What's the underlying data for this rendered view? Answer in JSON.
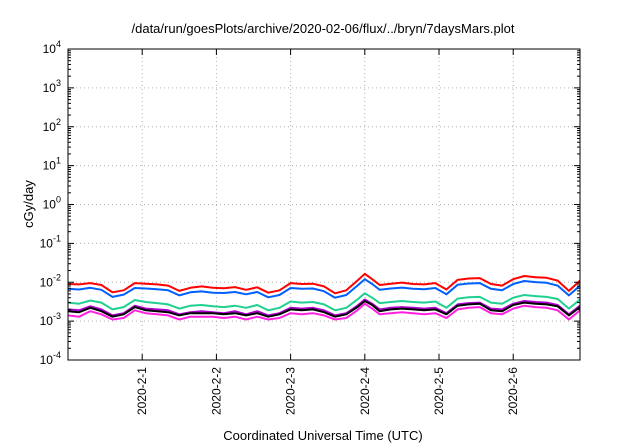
{
  "chart_data": {
    "type": "line",
    "title": "/data/run/goesPlots/archive/2020-02-06/flux/../bryn/7daysMars.plot",
    "xlabel": "Coordinated Universal Time (UTC)",
    "ylabel": "cGy/day",
    "yscale": "log",
    "ylim": [
      0.0001,
      10000
    ],
    "y_ticks": [
      {
        "value": 0.0001,
        "base": "10",
        "exp": "-4"
      },
      {
        "value": 0.001,
        "base": "10",
        "exp": "-3"
      },
      {
        "value": 0.01,
        "base": "10",
        "exp": "-2"
      },
      {
        "value": 0.1,
        "base": "10",
        "exp": "-1"
      },
      {
        "value": 1,
        "base": "10",
        "exp": "0"
      },
      {
        "value": 10,
        "base": "10",
        "exp": "1"
      },
      {
        "value": 100,
        "base": "10",
        "exp": "2"
      },
      {
        "value": 1000,
        "base": "10",
        "exp": "3"
      },
      {
        "value": 10000,
        "base": "10",
        "exp": "4"
      }
    ],
    "x_ticks": [
      {
        "label": "2020-2-1",
        "value": 1.0
      },
      {
        "label": "2020-2-2",
        "value": 2.0
      },
      {
        "label": "2020-2-3",
        "value": 3.0
      },
      {
        "label": "2020-2-4",
        "value": 4.0
      },
      {
        "label": "2020-2-5",
        "value": 5.0
      },
      {
        "label": "2020-2-6",
        "value": 6.0
      }
    ],
    "x_note": "x values are days in February 2020 (UTC)",
    "xlim": [
      0.0,
      6.9
    ],
    "grid": true,
    "series": [
      {
        "color": "#ff0000",
        "x": [
          0.0,
          0.15,
          0.3,
          0.45,
          0.6,
          0.75,
          0.9,
          1.05,
          1.2,
          1.35,
          1.5,
          1.65,
          1.8,
          1.95,
          2.1,
          2.25,
          2.4,
          2.55,
          2.7,
          2.85,
          3.0,
          3.15,
          3.3,
          3.45,
          3.6,
          3.75,
          3.9,
          4.0,
          4.1,
          4.2,
          4.35,
          4.5,
          4.65,
          4.8,
          4.95,
          5.1,
          5.25,
          5.4,
          5.55,
          5.7,
          5.85,
          6.0,
          6.15,
          6.3,
          6.45,
          6.6,
          6.75,
          6.9
        ],
        "values": [
          0.009,
          0.0088,
          0.0095,
          0.0085,
          0.0055,
          0.0062,
          0.0095,
          0.0092,
          0.0088,
          0.0082,
          0.006,
          0.0072,
          0.0078,
          0.0072,
          0.007,
          0.0075,
          0.0064,
          0.0074,
          0.0054,
          0.0062,
          0.0095,
          0.009,
          0.0092,
          0.0078,
          0.0052,
          0.0062,
          0.011,
          0.0165,
          0.012,
          0.0085,
          0.0092,
          0.0098,
          0.009,
          0.0088,
          0.0095,
          0.0065,
          0.0115,
          0.0125,
          0.0128,
          0.009,
          0.0082,
          0.012,
          0.0145,
          0.0135,
          0.013,
          0.011,
          0.006,
          0.011
        ]
      },
      {
        "color": "#0060ff",
        "x": [
          0.0,
          0.15,
          0.3,
          0.45,
          0.6,
          0.75,
          0.9,
          1.05,
          1.2,
          1.35,
          1.5,
          1.65,
          1.8,
          1.95,
          2.1,
          2.25,
          2.4,
          2.55,
          2.7,
          2.85,
          3.0,
          3.15,
          3.3,
          3.45,
          3.6,
          3.75,
          3.9,
          4.0,
          4.1,
          4.2,
          4.35,
          4.5,
          4.65,
          4.8,
          4.95,
          5.1,
          5.25,
          5.4,
          5.55,
          5.7,
          5.85,
          6.0,
          6.15,
          6.3,
          6.45,
          6.6,
          6.75,
          6.9
        ],
        "values": [
          0.0068,
          0.0065,
          0.0072,
          0.0064,
          0.0042,
          0.0048,
          0.0071,
          0.0069,
          0.0066,
          0.0062,
          0.0046,
          0.0055,
          0.0058,
          0.0054,
          0.0053,
          0.0056,
          0.0049,
          0.0056,
          0.0041,
          0.0047,
          0.0071,
          0.0068,
          0.0069,
          0.0059,
          0.004,
          0.0047,
          0.0082,
          0.012,
          0.009,
          0.0064,
          0.0069,
          0.0073,
          0.0068,
          0.0066,
          0.0071,
          0.0049,
          0.0086,
          0.0093,
          0.0095,
          0.0068,
          0.0062,
          0.009,
          0.0108,
          0.0101,
          0.0097,
          0.0082,
          0.0046,
          0.0082
        ]
      },
      {
        "color": "#20d090",
        "x": [
          0.0,
          0.15,
          0.3,
          0.45,
          0.6,
          0.75,
          0.9,
          1.05,
          1.2,
          1.35,
          1.5,
          1.65,
          1.8,
          1.95,
          2.1,
          2.25,
          2.4,
          2.55,
          2.7,
          2.85,
          3.0,
          3.15,
          3.3,
          3.45,
          3.6,
          3.75,
          3.9,
          4.0,
          4.1,
          4.2,
          4.35,
          4.5,
          4.65,
          4.8,
          4.95,
          5.1,
          5.25,
          5.4,
          5.55,
          5.7,
          5.85,
          6.0,
          6.15,
          6.3,
          6.45,
          6.6,
          6.75,
          6.9
        ],
        "values": [
          0.003,
          0.0028,
          0.0034,
          0.003,
          0.002,
          0.0023,
          0.0035,
          0.0031,
          0.0029,
          0.0027,
          0.0021,
          0.0025,
          0.0026,
          0.0024,
          0.0023,
          0.0025,
          0.0022,
          0.0026,
          0.0019,
          0.0022,
          0.0032,
          0.003,
          0.0031,
          0.0027,
          0.0019,
          0.0022,
          0.0036,
          0.0052,
          0.004,
          0.0029,
          0.0031,
          0.0033,
          0.0031,
          0.003,
          0.0032,
          0.0022,
          0.0038,
          0.0041,
          0.0042,
          0.003,
          0.0028,
          0.004,
          0.0047,
          0.0044,
          0.0042,
          0.0037,
          0.0021,
          0.0036
        ]
      },
      {
        "color": "#b000d0",
        "x": [
          0.0,
          0.15,
          0.3,
          0.45,
          0.6,
          0.75,
          0.9,
          1.05,
          1.2,
          1.35,
          1.5,
          1.65,
          1.8,
          1.95,
          2.1,
          2.25,
          2.4,
          2.55,
          2.7,
          2.85,
          3.0,
          3.15,
          3.3,
          3.45,
          3.6,
          3.75,
          3.9,
          4.0,
          4.1,
          4.2,
          4.35,
          4.5,
          4.65,
          4.8,
          4.95,
          5.1,
          5.25,
          5.4,
          5.55,
          5.7,
          5.85,
          6.0,
          6.15,
          6.3,
          6.45,
          6.6,
          6.75,
          6.9
        ],
        "values": [
          0.002,
          0.0019,
          0.0024,
          0.002,
          0.0014,
          0.0016,
          0.0025,
          0.0021,
          0.002,
          0.0019,
          0.0015,
          0.0017,
          0.0018,
          0.0017,
          0.0016,
          0.0018,
          0.0015,
          0.0018,
          0.0014,
          0.0016,
          0.0022,
          0.0021,
          0.0022,
          0.0019,
          0.0014,
          0.0016,
          0.0025,
          0.0036,
          0.0028,
          0.002,
          0.0022,
          0.0023,
          0.0022,
          0.0021,
          0.0022,
          0.0016,
          0.0027,
          0.0029,
          0.003,
          0.0021,
          0.002,
          0.0028,
          0.0033,
          0.0031,
          0.003,
          0.0026,
          0.0015,
          0.0025
        ]
      },
      {
        "color": "#000000",
        "x": [
          0.0,
          0.15,
          0.3,
          0.45,
          0.6,
          0.75,
          0.9,
          1.05,
          1.2,
          1.35,
          1.5,
          1.65,
          1.8,
          1.95,
          2.1,
          2.25,
          2.4,
          2.55,
          2.7,
          2.85,
          3.0,
          3.15,
          3.3,
          3.45,
          3.6,
          3.75,
          3.9,
          4.0,
          4.1,
          4.2,
          4.35,
          4.5,
          4.65,
          4.8,
          4.95,
          5.1,
          5.25,
          5.4,
          5.55,
          5.7,
          5.85,
          6.0,
          6.15,
          6.3,
          6.45,
          6.6,
          6.75,
          6.9
        ],
        "values": [
          0.0018,
          0.0017,
          0.0022,
          0.0018,
          0.0013,
          0.0015,
          0.0023,
          0.0019,
          0.0018,
          0.0017,
          0.0014,
          0.0016,
          0.0016,
          0.0016,
          0.0015,
          0.0016,
          0.0014,
          0.0016,
          0.0013,
          0.0015,
          0.002,
          0.0019,
          0.002,
          0.0017,
          0.0013,
          0.0015,
          0.0023,
          0.0033,
          0.0026,
          0.0018,
          0.002,
          0.0021,
          0.002,
          0.0019,
          0.002,
          0.0015,
          0.0025,
          0.0027,
          0.0028,
          0.0019,
          0.0018,
          0.0026,
          0.003,
          0.0028,
          0.0027,
          0.0024,
          0.0014,
          0.0023
        ]
      },
      {
        "color": "#ff20e0",
        "x": [
          0.0,
          0.15,
          0.3,
          0.45,
          0.6,
          0.75,
          0.9,
          1.05,
          1.2,
          1.35,
          1.5,
          1.65,
          1.8,
          1.95,
          2.1,
          2.25,
          2.4,
          2.55,
          2.7,
          2.85,
          3.0,
          3.15,
          3.3,
          3.45,
          3.6,
          3.75,
          3.9,
          4.0,
          4.1,
          4.2,
          4.35,
          4.5,
          4.65,
          4.8,
          4.95,
          5.1,
          5.25,
          5.4,
          5.55,
          5.7,
          5.85,
          6.0,
          6.15,
          6.3,
          6.45,
          6.6,
          6.75,
          6.9
        ],
        "values": [
          0.0014,
          0.0013,
          0.0018,
          0.0015,
          0.0011,
          0.0012,
          0.0019,
          0.0016,
          0.0015,
          0.0014,
          0.0011,
          0.0013,
          0.0013,
          0.0013,
          0.0012,
          0.0013,
          0.0011,
          0.0013,
          0.0011,
          0.0012,
          0.0016,
          0.0015,
          0.0016,
          0.0014,
          0.0011,
          0.0012,
          0.0019,
          0.0028,
          0.0021,
          0.0015,
          0.0016,
          0.0017,
          0.0016,
          0.0015,
          0.0016,
          0.0012,
          0.002,
          0.0022,
          0.0023,
          0.0016,
          0.0015,
          0.0021,
          0.0025,
          0.0023,
          0.0022,
          0.0019,
          0.0011,
          0.0019
        ]
      }
    ]
  }
}
